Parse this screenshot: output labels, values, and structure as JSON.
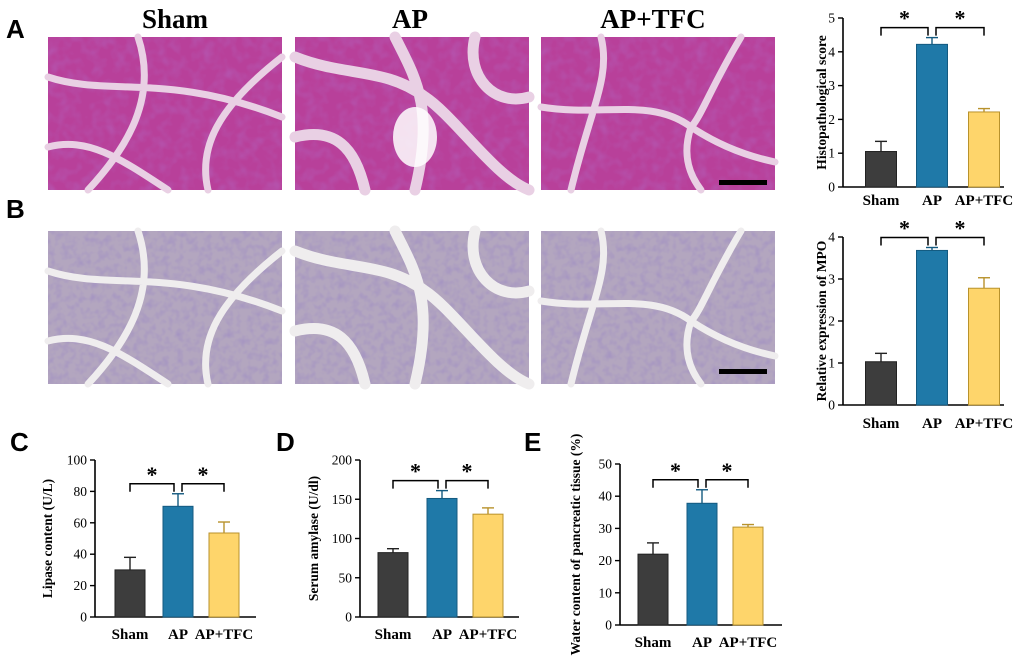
{
  "panel_letters": [
    "A",
    "B",
    "C",
    "D",
    "E"
  ],
  "image_grid": {
    "columns": [
      "Sham",
      "AP",
      "AP+TFC"
    ],
    "rows": [
      {
        "panel": "A",
        "colors": {
          "bg": "#e9d0e4",
          "lobule": "#b8409a",
          "dots": "#7d2c86"
        }
      },
      {
        "panel": "B",
        "colors": {
          "bg": "#efedee",
          "lobule": "#b3a6bf",
          "dots": "#5d4a8e"
        }
      }
    ]
  },
  "colors": {
    "sham": "#3d3d3d",
    "ap": "#1f79a8",
    "tfc": "#fed56b",
    "scale_bar": "#000000"
  },
  "chart_data": [
    {
      "panel": "A",
      "type": "bar",
      "categories": [
        "Sham",
        "AP",
        "AP+TFC"
      ],
      "values": [
        1.05,
        4.22,
        2.22
      ],
      "errors": [
        0.3,
        0.2,
        0.1
      ],
      "ylabel": "Histopathological score",
      "ylim": [
        0,
        5
      ],
      "yticks": [
        0,
        1,
        2,
        3,
        4,
        5
      ],
      "significance": [
        {
          "from": 0,
          "to": 1,
          "label": "*"
        },
        {
          "from": 1,
          "to": 2,
          "label": "*"
        }
      ]
    },
    {
      "panel": "B",
      "type": "bar",
      "categories": [
        "Sham",
        "AP",
        "AP+TFC"
      ],
      "values": [
        1.03,
        3.68,
        2.78
      ],
      "errors": [
        0.2,
        0.07,
        0.25
      ],
      "ylabel": "Relative expression of MPO",
      "ylim": [
        0,
        4
      ],
      "yticks": [
        0,
        1,
        2,
        3,
        4
      ],
      "significance": [
        {
          "from": 0,
          "to": 1,
          "label": "*"
        },
        {
          "from": 1,
          "to": 2,
          "label": "*"
        }
      ]
    },
    {
      "panel": "C",
      "type": "bar",
      "categories": [
        "Sham",
        "AP",
        "AP+TFC"
      ],
      "values": [
        30,
        70.5,
        53.5
      ],
      "errors": [
        8,
        8,
        7
      ],
      "ylabel": "Lipase content (U/L)",
      "ylim": [
        0,
        100
      ],
      "yticks": [
        0,
        20,
        40,
        60,
        80,
        100
      ],
      "significance": [
        {
          "from": 0,
          "to": 1,
          "label": "*"
        },
        {
          "from": 1,
          "to": 2,
          "label": "*"
        }
      ]
    },
    {
      "panel": "D",
      "type": "bar",
      "categories": [
        "Sham",
        "AP",
        "AP+TFC"
      ],
      "values": [
        82,
        151,
        131
      ],
      "errors": [
        5,
        10,
        8
      ],
      "ylabel": "Serum amylase (U/dl)",
      "ylim": [
        0,
        200
      ],
      "yticks": [
        0,
        50,
        100,
        150,
        200
      ],
      "significance": [
        {
          "from": 0,
          "to": 1,
          "label": "*"
        },
        {
          "from": 1,
          "to": 2,
          "label": "*"
        }
      ]
    },
    {
      "panel": "E",
      "type": "bar",
      "categories": [
        "Sham",
        "AP",
        "AP+TFC"
      ],
      "values": [
        22,
        37.8,
        30.4
      ],
      "errors": [
        3.5,
        4.2,
        0.8
      ],
      "ylabel": "Water content of pancreatic tissue (%)",
      "ylim": [
        0,
        50
      ],
      "yticks": [
        0,
        10,
        20,
        30,
        40,
        50
      ],
      "significance": [
        {
          "from": 0,
          "to": 1,
          "label": "*"
        },
        {
          "from": 1,
          "to": 2,
          "label": "*"
        }
      ]
    }
  ]
}
